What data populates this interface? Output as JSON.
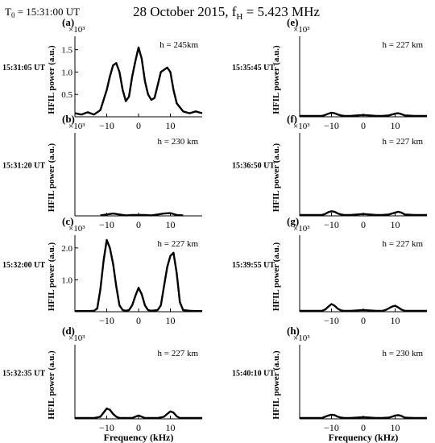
{
  "header": {
    "t0_main": "T",
    "t0_sub": "0",
    "t0_rest": " = 15:31:00 UT",
    "title_main": "28 October 2015, f",
    "title_sub": "H",
    "title_rest": " = 5.423 MHz"
  },
  "shared": {
    "ylabel": "HFIL power (a.u.)",
    "xlabel": "Frequency (kHz)",
    "multiplier": "×10³"
  },
  "chart_data": [
    {
      "type": "line",
      "panel": "(a)",
      "time": "15:31:05 UT",
      "height": "h = 245km",
      "xlim": [
        -20,
        20
      ],
      "ylim": [
        0,
        1.8
      ],
      "xticks": [
        -10,
        0,
        10
      ],
      "yticks": [
        0.5,
        1.0,
        1.5
      ],
      "ytick_labels": [
        "0.5",
        "1.0",
        "1.5"
      ],
      "x": [
        -20,
        -18,
        -16,
        -14,
        -12,
        -10,
        -9,
        -8,
        -7,
        -6,
        -5,
        -4,
        -3,
        -2,
        -1,
        0,
        1,
        2,
        3,
        4,
        5,
        6,
        7,
        8,
        9,
        10,
        11,
        12,
        14,
        16,
        18,
        20
      ],
      "y": [
        0.08,
        0.05,
        0.1,
        0.05,
        0.15,
        0.6,
        0.9,
        1.15,
        1.2,
        1.0,
        0.6,
        0.35,
        0.45,
        0.9,
        1.25,
        1.55,
        1.3,
        0.8,
        0.5,
        0.38,
        0.42,
        0.7,
        1.0,
        1.05,
        1.1,
        1.0,
        0.6,
        0.3,
        0.12,
        0.08,
        0.12,
        0.08
      ]
    },
    {
      "type": "line",
      "panel": "(b)",
      "time": "15:31:20 UT",
      "height": "h = 230 km",
      "xlim": [
        -20,
        20
      ],
      "ylim": [
        0,
        1.8
      ],
      "xticks": [
        -10,
        0,
        10
      ],
      "yticks": [],
      "ytick_labels": [],
      "x": [
        -12,
        -10,
        -8,
        -6,
        -4,
        -2,
        0,
        2,
        4,
        6,
        8,
        10,
        12,
        14
      ],
      "y": [
        0.01,
        0.03,
        0.05,
        0.03,
        0.01,
        0.02,
        0.02,
        0.02,
        0.01,
        0.03,
        0.05,
        0.06,
        0.02,
        0.01
      ]
    },
    {
      "type": "line",
      "panel": "(c)",
      "time": "15:32:00 UT",
      "height": "h = 227 km",
      "xlim": [
        -20,
        20
      ],
      "ylim": [
        0,
        2.4
      ],
      "xticks": [
        -10,
        0,
        10
      ],
      "yticks": [
        1.0,
        2.0
      ],
      "ytick_labels": [
        "1.0",
        "2.0"
      ],
      "x": [
        -20,
        -18,
        -16,
        -14,
        -13,
        -12,
        -11,
        -10,
        -9,
        -8,
        -7,
        -6,
        -5,
        -4,
        -3,
        -2,
        -1,
        0,
        1,
        2,
        3,
        4,
        5,
        6,
        7,
        8,
        9,
        10,
        11,
        12,
        13,
        14,
        16,
        18,
        20
      ],
      "y": [
        0.02,
        0.02,
        0.02,
        0.03,
        0.1,
        0.7,
        1.6,
        2.25,
        2.0,
        1.5,
        0.8,
        0.2,
        0.05,
        0.03,
        0.05,
        0.2,
        0.5,
        0.75,
        0.55,
        0.2,
        0.05,
        0.03,
        0.04,
        0.05,
        0.2,
        0.8,
        1.4,
        1.75,
        1.85,
        1.2,
        0.3,
        0.05,
        0.03,
        0.02,
        0.02
      ]
    },
    {
      "type": "line",
      "panel": "(d)",
      "time": "15:32:35 UT",
      "height": "h = 227 km",
      "xlim": [
        -20,
        20
      ],
      "ylim": [
        0,
        1.8
      ],
      "xticks": [
        -10,
        0,
        10
      ],
      "yticks": [],
      "ytick_labels": [],
      "x": [
        -20,
        -16,
        -14,
        -12,
        -11,
        -10,
        -9,
        -8,
        -7,
        -6,
        -4,
        -2,
        -1,
        0,
        1,
        2,
        4,
        6,
        8,
        9,
        10,
        11,
        12,
        13,
        14,
        16,
        20
      ],
      "y": [
        0.02,
        0.02,
        0.02,
        0.05,
        0.15,
        0.25,
        0.22,
        0.12,
        0.05,
        0.02,
        0.02,
        0.02,
        0.05,
        0.08,
        0.05,
        0.02,
        0.02,
        0.02,
        0.05,
        0.12,
        0.18,
        0.15,
        0.06,
        0.02,
        0.02,
        0.02,
        0.02
      ]
    },
    {
      "type": "line",
      "panel": "(e)",
      "time": "15:35:45 UT",
      "height": "h = 227 km",
      "xlim": [
        -20,
        20
      ],
      "ylim": [
        0,
        1.8
      ],
      "xticks": [
        -10,
        0,
        10
      ],
      "yticks": [],
      "ytick_labels": [],
      "x": [
        -20,
        -16,
        -13,
        -12,
        -11,
        -10,
        -9,
        -8,
        -7,
        -6,
        -4,
        -2,
        0,
        2,
        4,
        6,
        8,
        9,
        10,
        11,
        12,
        13,
        16,
        20
      ],
      "y": [
        0.02,
        0.02,
        0.02,
        0.04,
        0.07,
        0.09,
        0.08,
        0.05,
        0.03,
        0.02,
        0.02,
        0.03,
        0.04,
        0.03,
        0.02,
        0.02,
        0.03,
        0.05,
        0.07,
        0.08,
        0.06,
        0.03,
        0.02,
        0.02
      ]
    },
    {
      "type": "line",
      "panel": "(f)",
      "time": "15:36:50 UT",
      "height": "h = 227 km",
      "xlim": [
        -20,
        20
      ],
      "ylim": [
        0,
        1.8
      ],
      "xticks": [
        -10,
        0,
        10
      ],
      "yticks": [],
      "ytick_labels": [],
      "x": [
        -20,
        -16,
        -13,
        -12,
        -11,
        -10,
        -9,
        -8,
        -7,
        -6,
        -4,
        -2,
        0,
        2,
        4,
        6,
        8,
        9,
        10,
        11,
        12,
        13,
        16,
        20
      ],
      "y": [
        0.02,
        0.02,
        0.02,
        0.04,
        0.08,
        0.1,
        0.09,
        0.05,
        0.03,
        0.02,
        0.02,
        0.03,
        0.04,
        0.03,
        0.02,
        0.02,
        0.03,
        0.05,
        0.07,
        0.09,
        0.07,
        0.03,
        0.02,
        0.02
      ]
    },
    {
      "type": "line",
      "panel": "(g)",
      "time": "15:39:55 UT",
      "height": "h = 227 km",
      "xlim": [
        -20,
        20
      ],
      "ylim": [
        0,
        1.8
      ],
      "xticks": [
        -10,
        0,
        10
      ],
      "yticks": [],
      "ytick_labels": [],
      "x": [
        -20,
        -16,
        -13,
        -12,
        -11,
        -10,
        -9,
        -8,
        -7,
        -6,
        -4,
        -2,
        0,
        2,
        4,
        6,
        7,
        8,
        9,
        10,
        11,
        12,
        13,
        16,
        20
      ],
      "y": [
        0.02,
        0.02,
        0.02,
        0.05,
        0.12,
        0.18,
        0.14,
        0.07,
        0.03,
        0.02,
        0.02,
        0.03,
        0.04,
        0.03,
        0.02,
        0.02,
        0.04,
        0.08,
        0.12,
        0.14,
        0.1,
        0.05,
        0.02,
        0.02,
        0.02
      ]
    },
    {
      "type": "line",
      "panel": "(h)",
      "time": "15:40:10 UT",
      "height": "h = 230 km",
      "xlim": [
        -20,
        20
      ],
      "ylim": [
        0,
        1.8
      ],
      "xticks": [
        -10,
        0,
        10
      ],
      "yticks": [],
      "ytick_labels": [],
      "x": [
        -20,
        -16,
        -13,
        -12,
        -11,
        -10,
        -9,
        -8,
        -7,
        -6,
        -4,
        -2,
        0,
        2,
        4,
        6,
        8,
        9,
        10,
        11,
        12,
        13,
        16,
        20
      ],
      "y": [
        0.02,
        0.02,
        0.02,
        0.05,
        0.08,
        0.1,
        0.09,
        0.05,
        0.03,
        0.02,
        0.02,
        0.03,
        0.04,
        0.03,
        0.02,
        0.02,
        0.03,
        0.05,
        0.08,
        0.09,
        0.07,
        0.03,
        0.02,
        0.02
      ]
    }
  ]
}
